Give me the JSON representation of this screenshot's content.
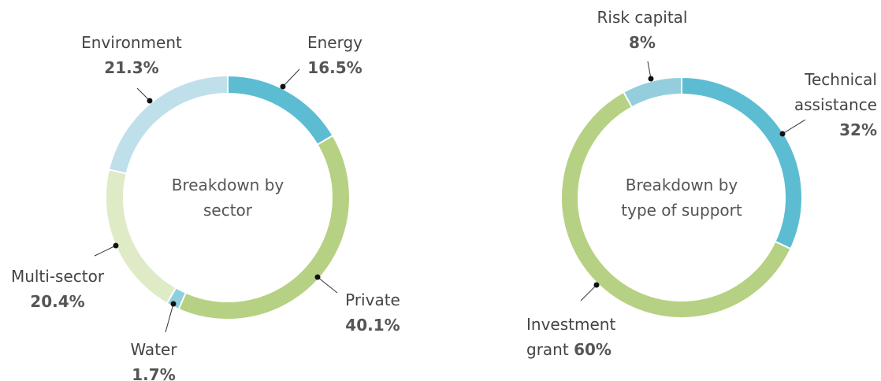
{
  "chart_data": [
    {
      "type": "donut",
      "center_label": "Breakdown by sector",
      "categories": [
        "Energy",
        "Private",
        "Water",
        "Multi-sector",
        "Environment"
      ],
      "values": [
        16.5,
        40.1,
        1.7,
        20.4,
        21.3
      ],
      "value_labels": [
        "16.5%",
        "40.1%",
        "1.7%",
        "20.4%",
        "21.3%"
      ],
      "colors": [
        "#5cbdd2",
        "#b6d183",
        "#8ecfdf",
        "#dfeac7",
        "#bfe0ea"
      ]
    },
    {
      "type": "donut",
      "center_label": "Breakdown by type of support",
      "categories": [
        "Technical assistance",
        "Investment grant",
        "Risk capital"
      ],
      "values": [
        32,
        60,
        8
      ],
      "value_labels": [
        "32%",
        "60%",
        "8%"
      ],
      "colors": [
        "#5cbdd2",
        "#b6d183",
        "#94cedd"
      ]
    }
  ]
}
